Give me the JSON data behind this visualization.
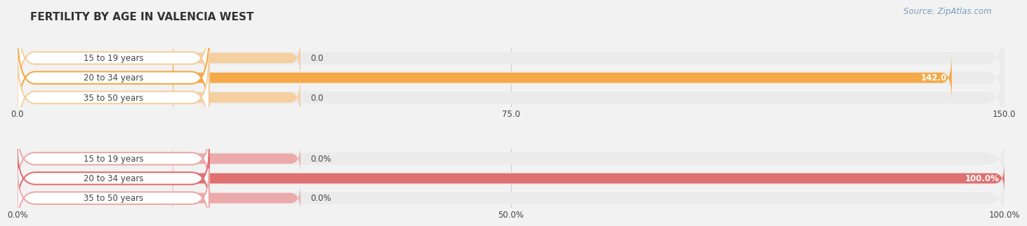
{
  "title": "FERTILITY BY AGE IN VALENCIA WEST",
  "source": "Source: ZipAtlas.com",
  "top_chart": {
    "categories": [
      "15 to 19 years",
      "20 to 34 years",
      "35 to 50 years"
    ],
    "values": [
      0.0,
      142.0,
      0.0
    ],
    "xlim": [
      0,
      150.0
    ],
    "xticks": [
      0.0,
      75.0,
      150.0
    ],
    "xtick_labels": [
      "0.0",
      "75.0",
      "150.0"
    ],
    "bar_color_full": "#F5A947",
    "bar_color_empty": "#F5CFA0",
    "bar_bg_color": "#EBEBEB",
    "value_labels": [
      "0.0",
      "142.0",
      "0.0"
    ],
    "label_pill_color": "#FFFFFF",
    "label_pill_stroke": "#E8C8A0"
  },
  "bottom_chart": {
    "categories": [
      "15 to 19 years",
      "20 to 34 years",
      "35 to 50 years"
    ],
    "values": [
      0.0,
      100.0,
      0.0
    ],
    "xlim": [
      0,
      100.0
    ],
    "xticks": [
      0.0,
      50.0,
      100.0
    ],
    "xtick_labels": [
      "0.0%",
      "50.0%",
      "100.0%"
    ],
    "bar_color_full": "#E07070",
    "bar_color_empty": "#EDAAAA",
    "bar_bg_color": "#EBEBEB",
    "value_labels": [
      "0.0%",
      "100.0%",
      "0.0%"
    ],
    "label_pill_color": "#FFFFFF",
    "label_pill_stroke": "#DDA8A8"
  },
  "title_fontsize": 11,
  "source_fontsize": 8.5,
  "label_fontsize": 8.5,
  "tick_fontsize": 8.5,
  "bar_height": 0.62,
  "label_color": "#444444",
  "bg_figure": "#F2F2F2",
  "row_bg_color": "#EAEAEA"
}
